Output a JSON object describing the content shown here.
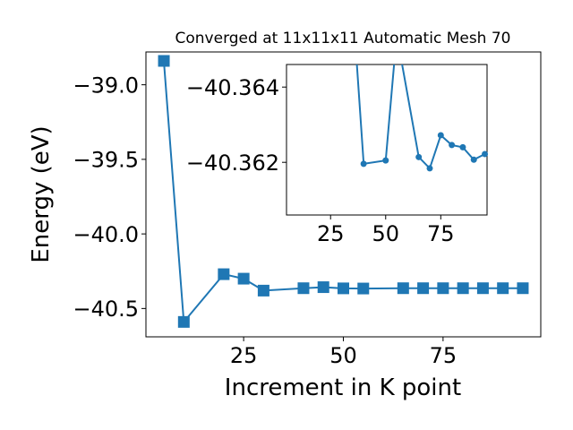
{
  "chart_data": [
    {
      "type": "line",
      "title": "Converged at 11x11x11 Automatic Mesh 70",
      "xlabel": "Increment in K point",
      "ylabel": "Energy (eV)",
      "xlim": [
        0.5,
        99.5
      ],
      "ylim": [
        -40.69,
        -38.78
      ],
      "xticks": [
        25,
        50,
        75
      ],
      "yticks": [
        -39.0,
        -39.5,
        -40.0,
        -40.5
      ],
      "ytick_labels": [
        "−39.0",
        "−39.5",
        "−40.0",
        "−40.5"
      ],
      "grid": false,
      "marker": "square",
      "color": "#1f77b4",
      "x": [
        5,
        10,
        20,
        25,
        30,
        40,
        45,
        50,
        55,
        65,
        70,
        75,
        80,
        85,
        90,
        95
      ],
      "y": [
        -38.84,
        -40.59,
        -40.27,
        -40.3,
        -40.38,
        -40.364,
        -40.357,
        -40.365,
        -40.366,
        -40.364,
        -40.364,
        -40.364,
        -40.364,
        -40.364,
        -40.364,
        -40.364
      ]
    },
    {
      "type": "line",
      "role": "inset",
      "xlim": [
        5,
        96
      ],
      "ylim": [
        -40.3606,
        -40.3646
      ],
      "xticks": [
        25,
        50,
        75
      ],
      "yticks": [
        -40.364,
        -40.362
      ],
      "ytick_labels": [
        "−40.364",
        "−40.362"
      ],
      "grid": false,
      "marker": "circle",
      "color": "#1f77b4",
      "x": [
        36,
        40,
        50,
        55,
        65,
        70,
        75,
        80,
        85,
        90,
        95
      ],
      "y": [
        -40.3654,
        -40.36196,
        -40.36205,
        -40.3654,
        -40.36214,
        -40.36184,
        -40.36272,
        -40.36246,
        -40.3624,
        -40.36207,
        -40.36222
      ]
    }
  ]
}
